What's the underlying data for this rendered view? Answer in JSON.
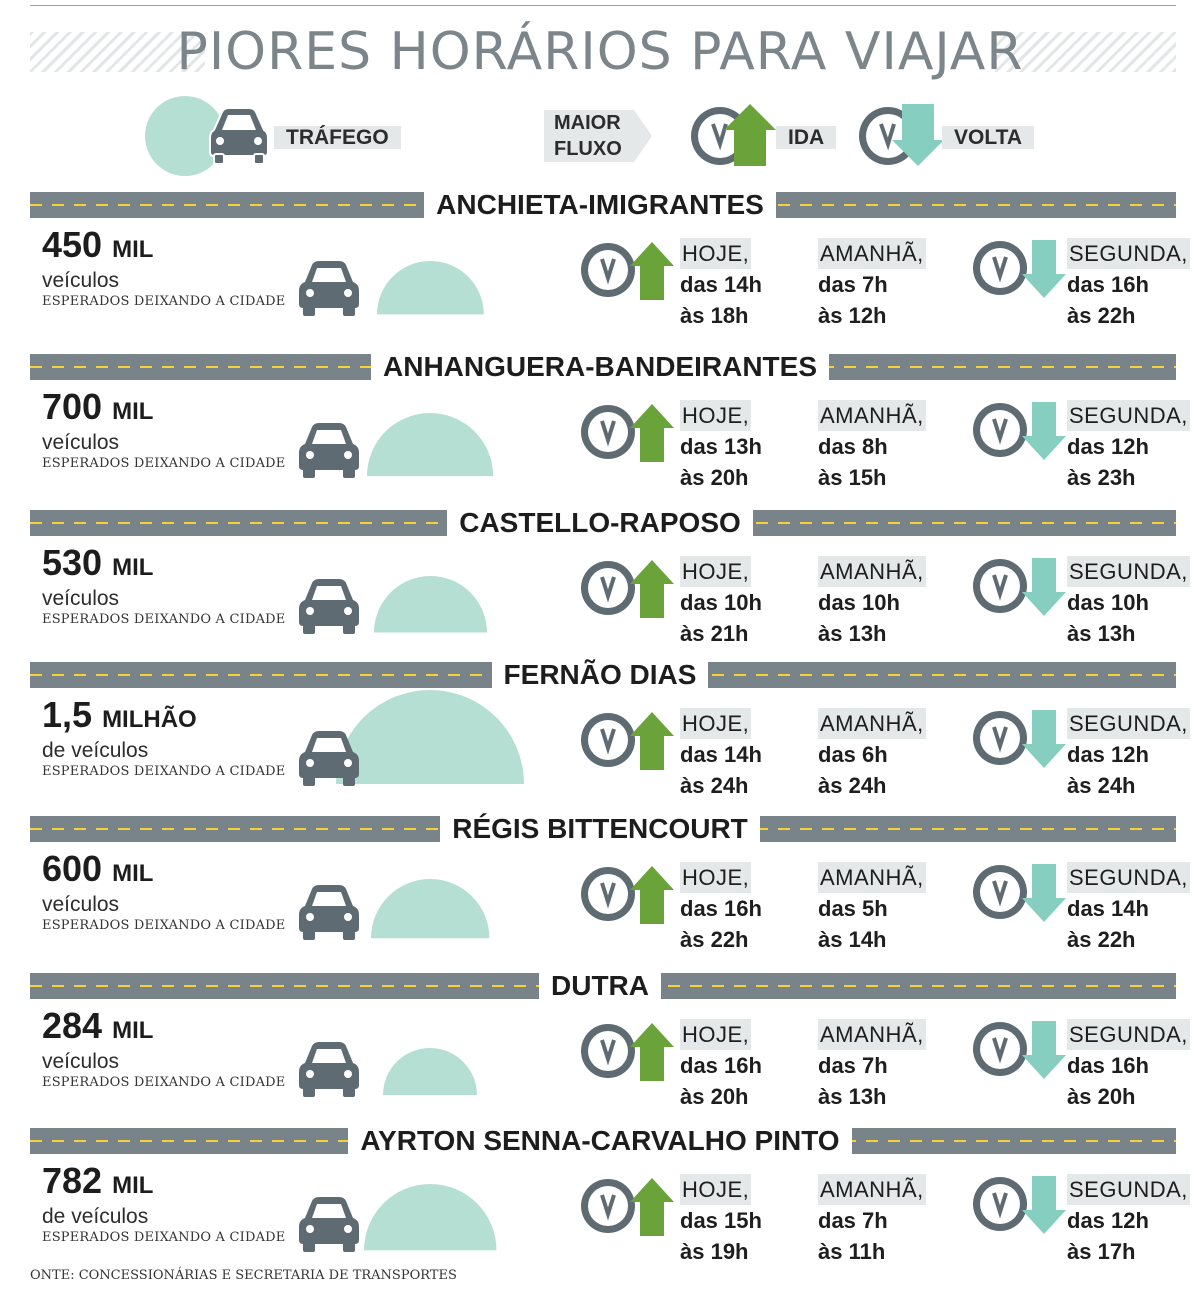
{
  "title": "PIORES HORÁRIOS PARA VIAJAR",
  "legend": {
    "traffic": "TRÁFEGO",
    "flow_line1": "MAIOR",
    "flow_line2": "FLUXO",
    "ida": "IDA",
    "volta": "VOLTA"
  },
  "colors": {
    "road": "#79838a",
    "stripe": "#f6d23a",
    "mound": "#b6dfd4",
    "car": "#5f6b72",
    "up_arrow": "#6aa33a",
    "down_arrow": "#86cfc0",
    "clock": "#5f6b72"
  },
  "chart_data": {
    "type": "table",
    "title": "PIORES HORÁRIOS PARA VIAJAR",
    "columns": [
      "vehicles_leaving_city",
      "HOJE",
      "AMANHÃ",
      "SEGUNDA"
    ],
    "highways": [
      {
        "name": "ANCHIETA-IMIGRANTES",
        "volume": "450",
        "unit": "MIL",
        "label": "veículos",
        "sublabel": "ESPERADOS DEIXANDO A CIDADE",
        "vehicles": 450000,
        "today": {
          "day": "HOJE,",
          "from": "das 14h",
          "to": "às 18h"
        },
        "tomorrow": {
          "day": "AMANHÃ,",
          "from": "das 7h",
          "to": "às 12h"
        },
        "monday": {
          "day": "SEGUNDA,",
          "from": "das 16h",
          "to": "às 22h"
        }
      },
      {
        "name": "ANHANGUERA-BANDEIRANTES",
        "volume": "700",
        "unit": "MIL",
        "label": "veículos",
        "sublabel": "ESPERADOS DEIXANDO A CIDADE",
        "vehicles": 700000,
        "today": {
          "day": "HOJE,",
          "from": "das 13h",
          "to": "às 20h"
        },
        "tomorrow": {
          "day": "AMANHÃ,",
          "from": "das 8h",
          "to": "às 15h"
        },
        "monday": {
          "day": "SEGUNDA,",
          "from": "das 12h",
          "to": "às 23h"
        }
      },
      {
        "name": "CASTELLO-RAPOSO",
        "volume": "530",
        "unit": "MIL",
        "label": "veículos",
        "sublabel": "ESPERADOS DEIXANDO A CIDADE",
        "vehicles": 530000,
        "today": {
          "day": "HOJE,",
          "from": "das 10h",
          "to": "às 21h"
        },
        "tomorrow": {
          "day": "AMANHÃ,",
          "from": "das 10h",
          "to": "às 13h"
        },
        "monday": {
          "day": "SEGUNDA,",
          "from": "das 10h",
          "to": "às 13h"
        }
      },
      {
        "name": "FERNÃO DIAS",
        "volume": "1,5",
        "unit": "MILHÃO",
        "label": "de veículos",
        "sublabel": "ESPERADOS DEIXANDO A CIDADE",
        "vehicles": 1500000,
        "today": {
          "day": "HOJE,",
          "from": "das 14h",
          "to": "às 24h"
        },
        "tomorrow": {
          "day": "AMANHÃ,",
          "from": "das 6h",
          "to": "às 24h"
        },
        "monday": {
          "day": "SEGUNDA,",
          "from": "das 12h",
          "to": "às 24h"
        }
      },
      {
        "name": "RÉGIS BITTENCOURT",
        "volume": "600",
        "unit": "MIL",
        "label": "veículos",
        "sublabel": "ESPERADOS DEIXANDO A CIDADE",
        "vehicles": 600000,
        "today": {
          "day": "HOJE,",
          "from": "das 16h",
          "to": "às 22h"
        },
        "tomorrow": {
          "day": "AMANHÃ,",
          "from": "das 5h",
          "to": "às 14h"
        },
        "monday": {
          "day": "SEGUNDA,",
          "from": "das 14h",
          "to": "às 22h"
        }
      },
      {
        "name": "DUTRA",
        "volume": "284",
        "unit": "MIL",
        "label": "veículos",
        "sublabel": "ESPERADOS DEIXANDO A CIDADE",
        "vehicles": 284000,
        "today": {
          "day": "HOJE,",
          "from": "das 16h",
          "to": "às 20h"
        },
        "tomorrow": {
          "day": "AMANHÃ,",
          "from": "das 7h",
          "to": "às 13h"
        },
        "monday": {
          "day": "SEGUNDA,",
          "from": "das 16h",
          "to": "às 20h"
        }
      },
      {
        "name": "AYRTON SENNA-CARVALHO PINTO",
        "volume": "782",
        "unit": "MIL",
        "label": "de veículos",
        "sublabel": "ESPERADOS DEIXANDO A CIDADE",
        "vehicles": 782000,
        "today": {
          "day": "HOJE,",
          "from": "das 15h",
          "to": "às 19h"
        },
        "tomorrow": {
          "day": "AMANHÃ,",
          "from": "das 7h",
          "to": "às 11h"
        },
        "monday": {
          "day": "SEGUNDA,",
          "from": "das 12h",
          "to": "às 17h"
        }
      }
    ]
  },
  "source": "ONTE: CONCESSIONÁRIAS E SECRETARIA DE TRANSPORTES"
}
